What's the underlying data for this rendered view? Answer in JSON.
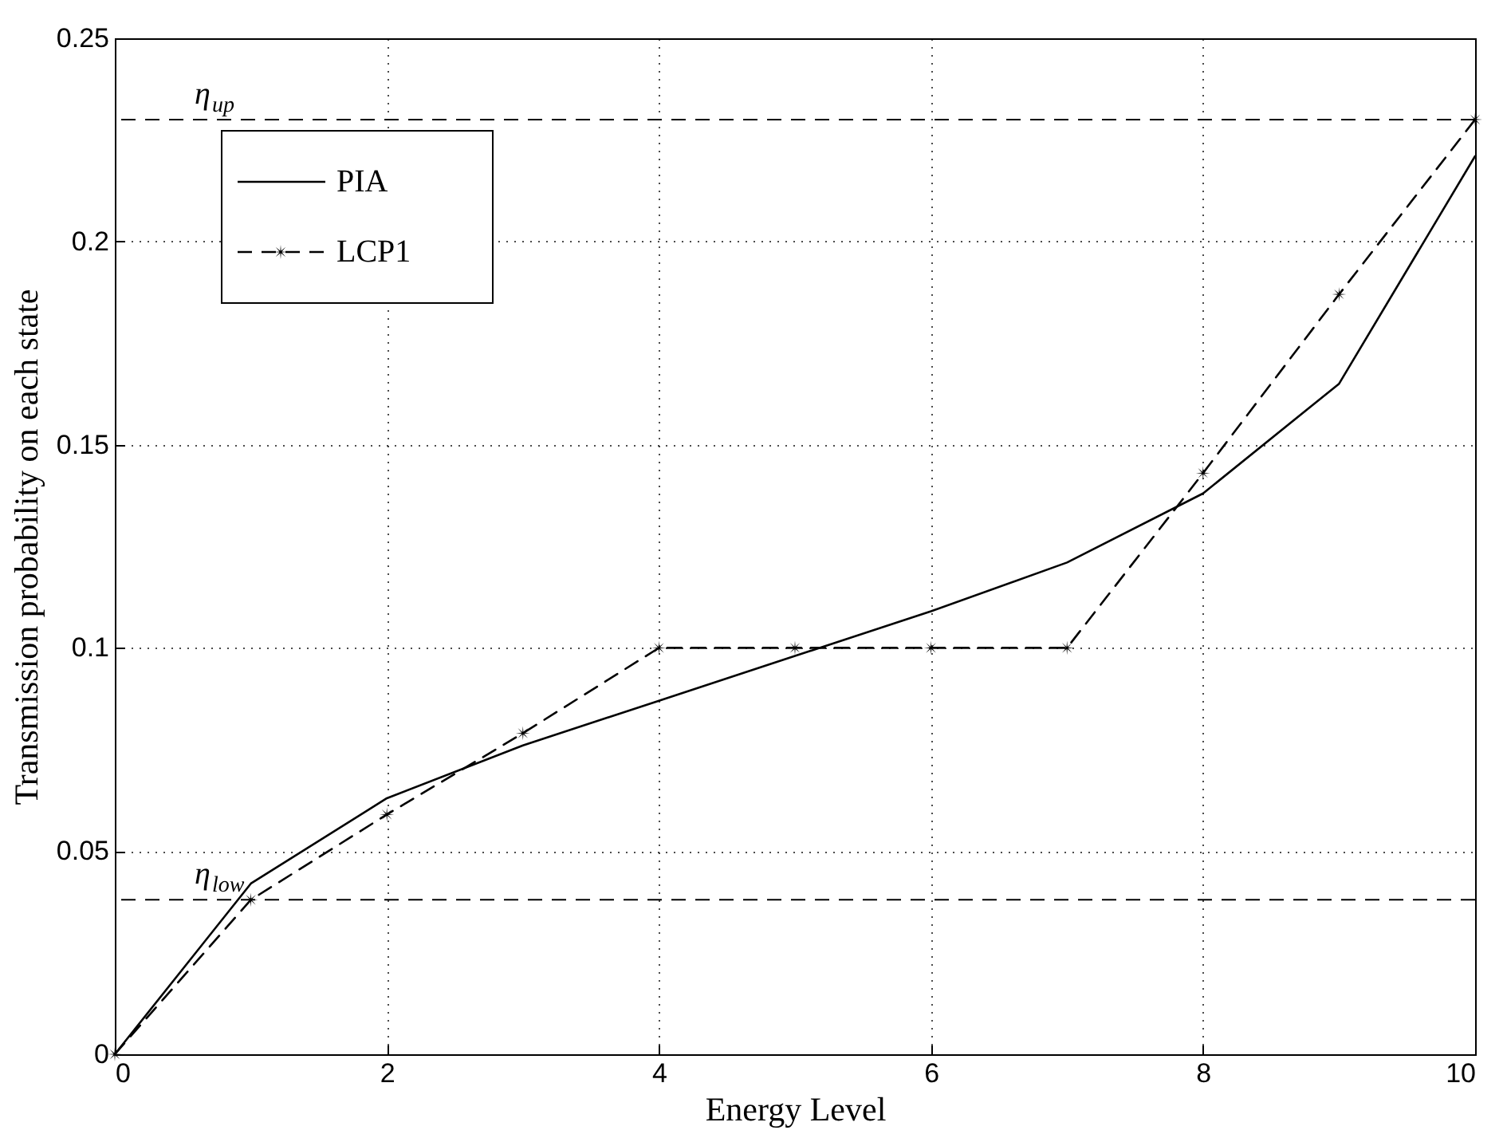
{
  "chart_data": {
    "type": "line",
    "xlabel": "Energy Level",
    "ylabel": "Transmission probability on each state",
    "x": [
      0,
      1,
      2,
      3,
      4,
      5,
      6,
      7,
      8,
      9,
      10
    ],
    "series": [
      {
        "name": "PIA",
        "color": "#000000",
        "line_style": "solid",
        "marker": "none",
        "values": [
          0,
          0.042,
          0.063,
          0.076,
          0.087,
          0.098,
          0.109,
          0.121,
          0.138,
          0.165,
          0.221
        ]
      },
      {
        "name": "LCP1",
        "color": "#000000",
        "line_style": "dashed",
        "marker": "star",
        "values": [
          0,
          0.038,
          0.059,
          0.079,
          0.1,
          0.1,
          0.1,
          0.1,
          0.143,
          0.187,
          0.23
        ]
      }
    ],
    "xlim": [
      0,
      10
    ],
    "xticks": [
      0,
      2,
      4,
      6,
      8,
      10
    ],
    "ylim": [
      0,
      0.25
    ],
    "yticks": [
      0,
      0.05,
      0.1,
      0.15,
      0.2,
      0.25
    ],
    "ref_lines": [
      {
        "axis": "y",
        "value": 0.23,
        "label": "η$_{up}$",
        "color": "#000000",
        "line_style": "dashed"
      },
      {
        "axis": "y",
        "value": 0.038,
        "label": "η$_{low}$",
        "color": "#000000",
        "line_style": "dashed"
      }
    ],
    "grid": true,
    "legend": "top left"
  }
}
